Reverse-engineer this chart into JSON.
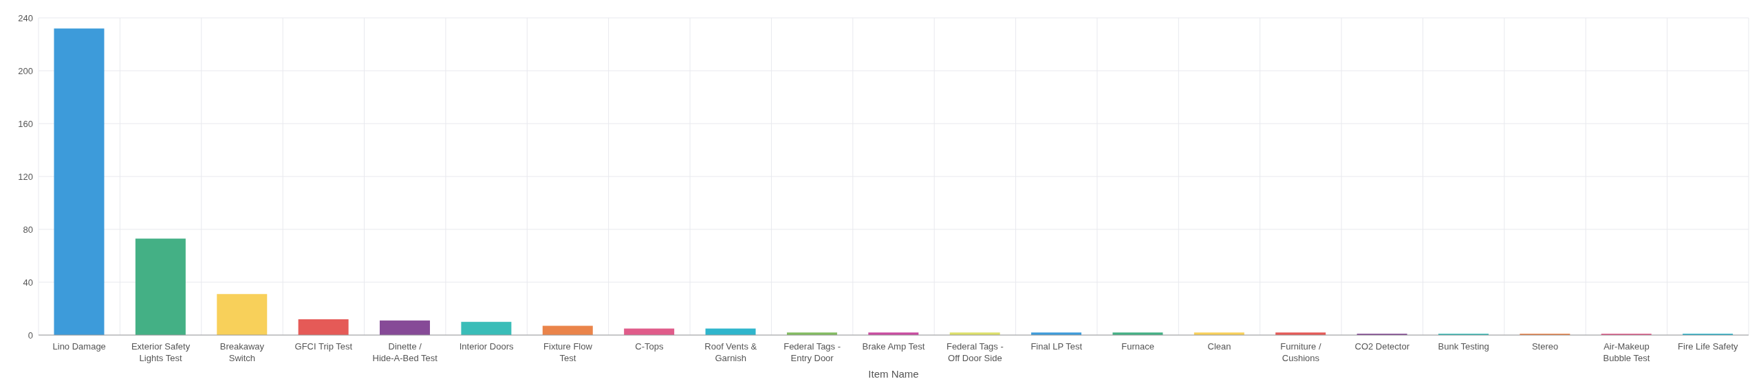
{
  "chart_data": {
    "type": "bar",
    "xlabel": "Item Name",
    "categories": [
      "Lino Damage",
      "Exterior Safety Lights Test",
      "Breakaway Switch",
      "GFCI Trip Test",
      "Dinette / Hide-A-Bed Test",
      "Interior Doors",
      "Fixture Flow Test",
      "C-Tops",
      "Roof Vents & Garnish",
      "Federal Tags - Entry Door",
      "Brake Amp Test",
      "Federal Tags - Off Door Side",
      "Final LP Test",
      "Furnace",
      "Clean",
      "Furniture / Cushions",
      "CO2 Detector",
      "Bunk Testing",
      "Stereo",
      "Air-Makeup Bubble Test",
      "Fire Life Safety"
    ],
    "values": [
      232,
      73,
      31,
      12,
      11,
      10,
      7,
      5,
      5,
      2,
      2,
      2,
      2,
      2,
      2,
      2,
      1,
      1,
      1,
      1,
      1
    ],
    "colors": [
      "#3d9bda",
      "#44b085",
      "#f8d05a",
      "#e55a57",
      "#864a97",
      "#3abdb8",
      "#ea844a",
      "#e05c8a",
      "#2fb5cc",
      "#82bb60",
      "#c94ba0",
      "#dde06a",
      "#3d9bda",
      "#44b085",
      "#f8d05a",
      "#e55a57",
      "#864a97",
      "#3abdb8",
      "#ea844a",
      "#e05c8a",
      "#2fb5cc"
    ],
    "ylim": [
      0,
      240
    ],
    "yticks": [
      0,
      40,
      80,
      120,
      160,
      200,
      240
    ],
    "grid": true
  }
}
